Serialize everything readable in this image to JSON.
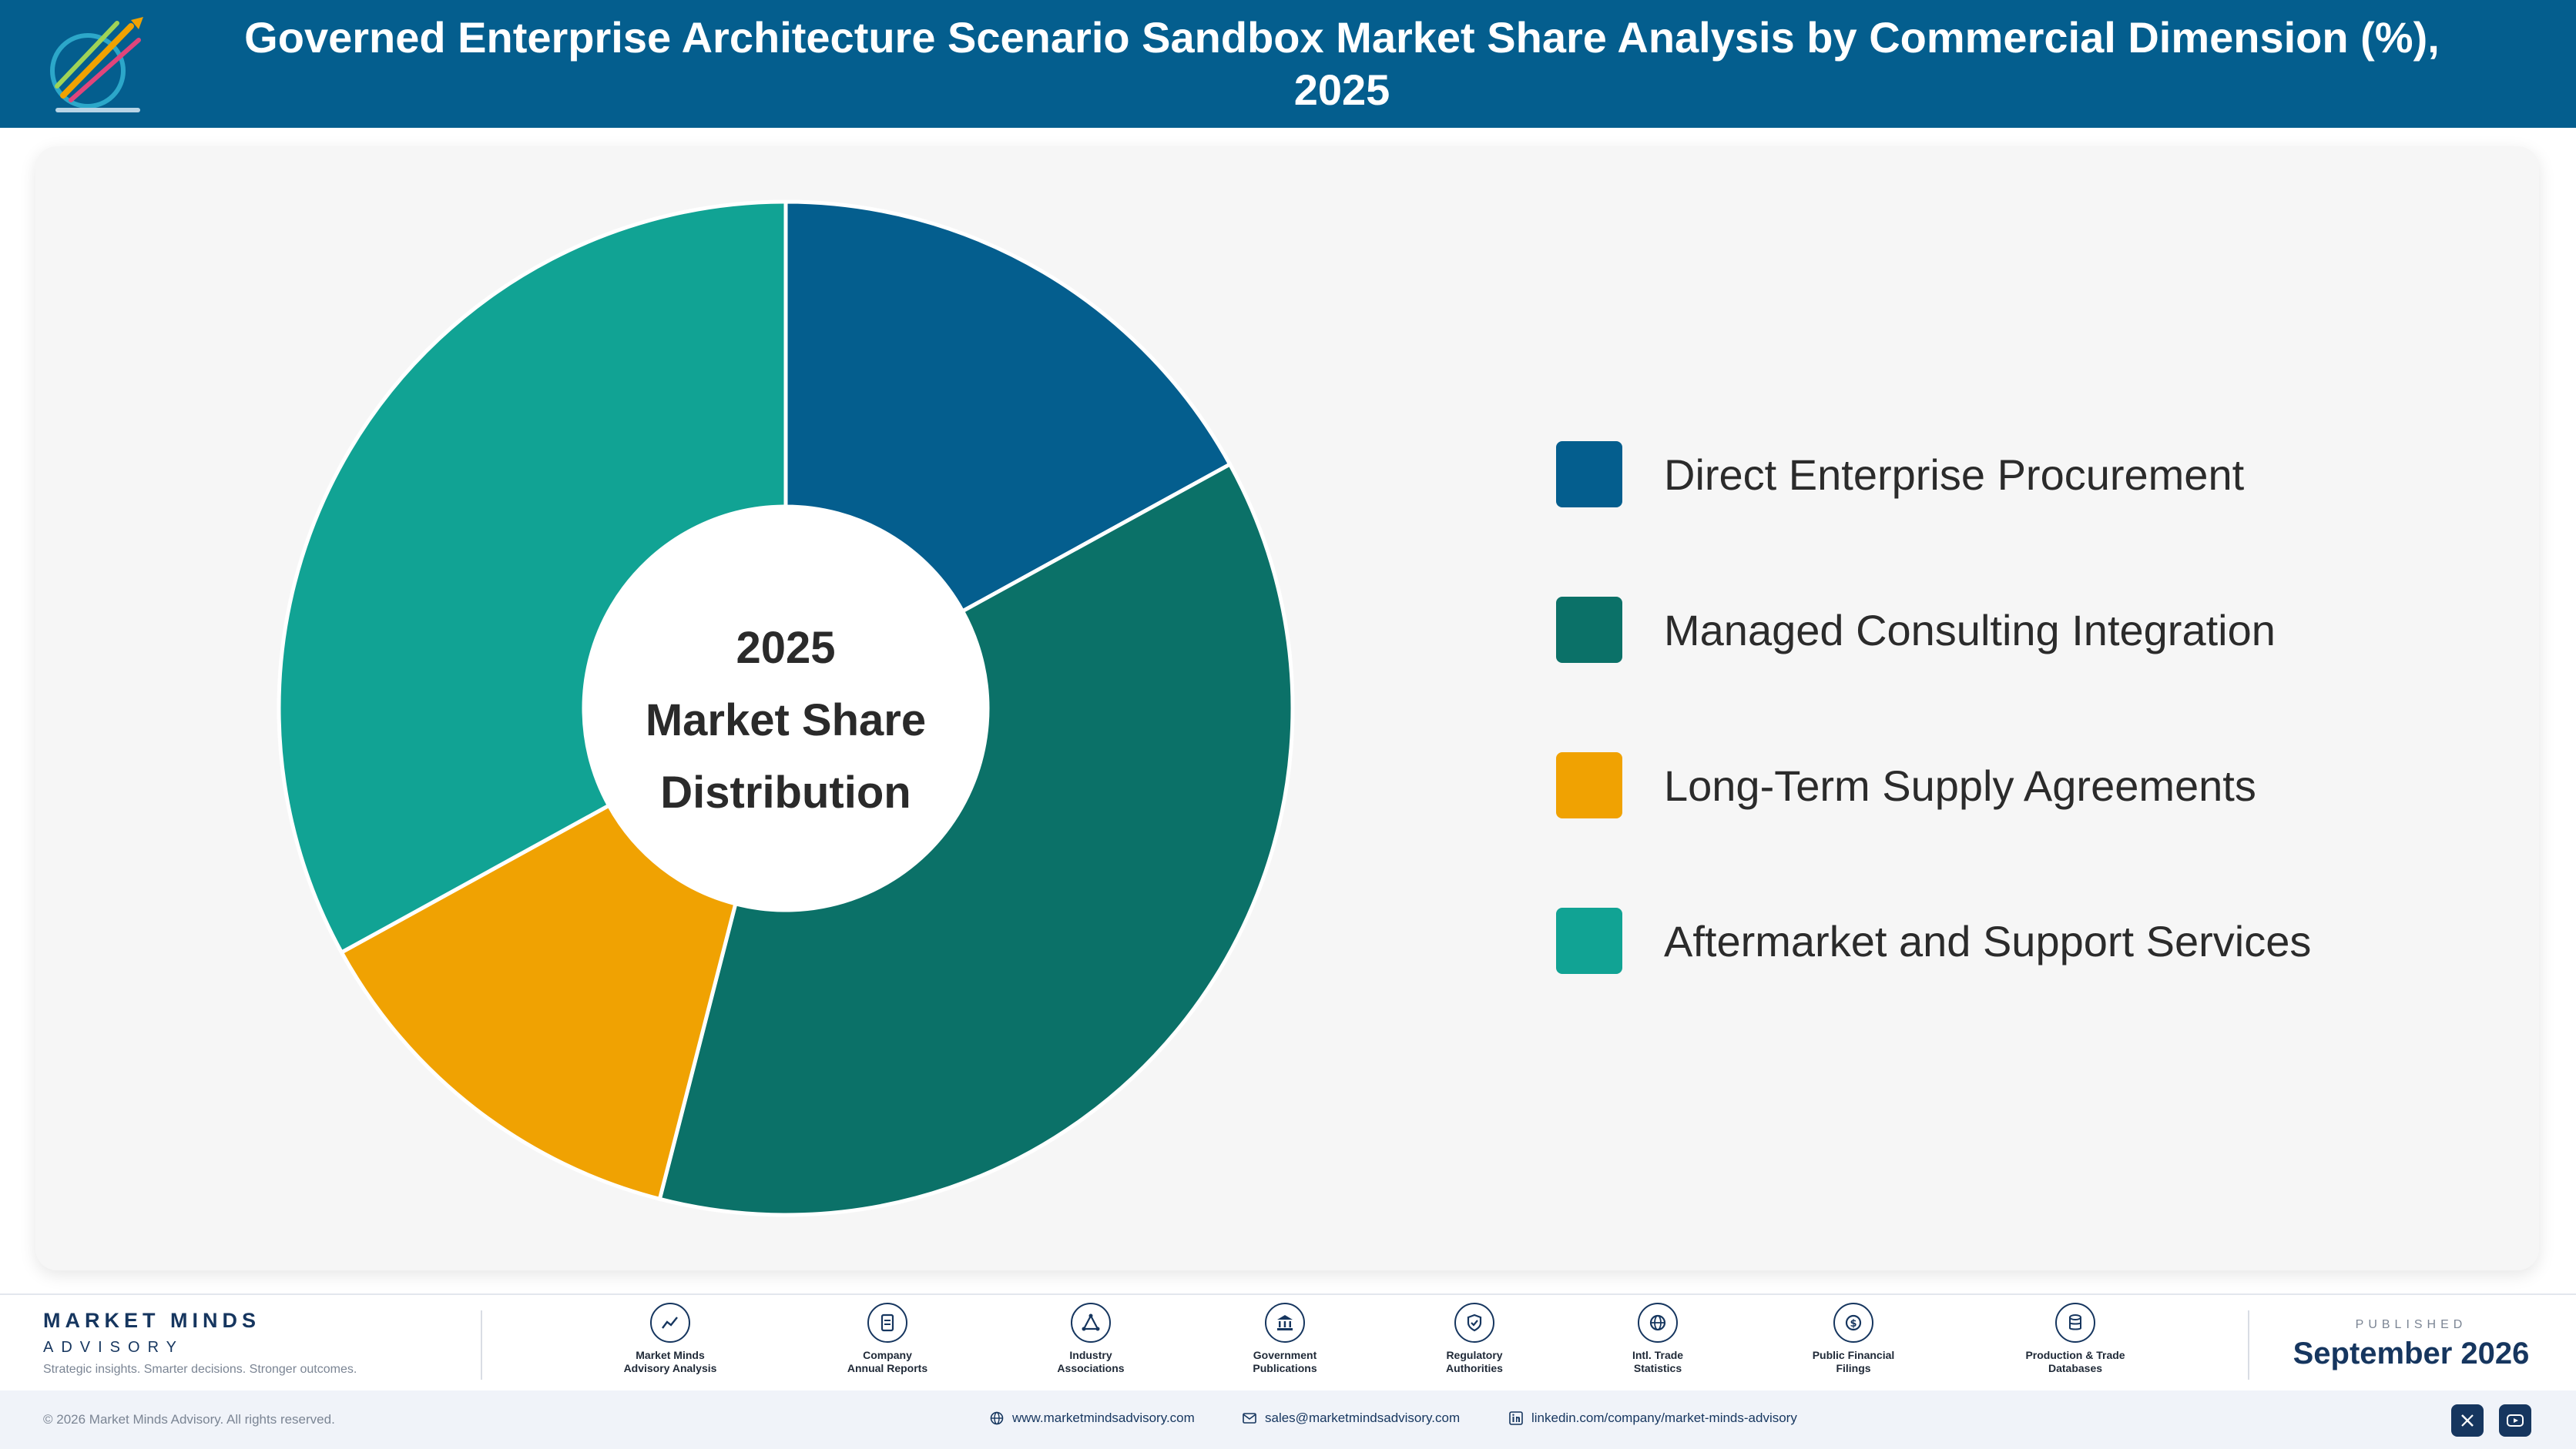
{
  "header": {
    "title": "Governed Enterprise Architecture Scenario Sandbox Market Share Analysis by Commercial Dimension (%), 2025"
  },
  "chart_data": {
    "type": "pie",
    "title": "Governed Enterprise Architecture Scenario Sandbox Market Share Analysis by Commercial Dimension (%), 2025",
    "center_label": [
      "2025",
      "Market Share",
      "Distribution"
    ],
    "categories": [
      "Direct Enterprise Procurement",
      "Managed Consulting Integration",
      "Long-Term Supply Agreements",
      "Aftermarket and Support Services"
    ],
    "values": [
      17,
      37,
      13,
      33
    ],
    "colors": [
      "#045e8e",
      "#0b7168",
      "#f0a202",
      "#11a394"
    ],
    "legend_position": "right"
  },
  "footer": {
    "brand": {
      "name": "MARKET MINDS",
      "sub": "ADVISORY",
      "tagline": "Strategic insights. Smarter decisions. Stronger outcomes."
    },
    "sources": [
      {
        "line1": "Market Minds",
        "line2": "Advisory Analysis",
        "icon": "chart-line-icon"
      },
      {
        "line1": "Company",
        "line2": "Annual Reports",
        "icon": "document-icon"
      },
      {
        "line1": "Industry",
        "line2": "Associations",
        "icon": "network-icon"
      },
      {
        "line1": "Government",
        "line2": "Publications",
        "icon": "government-building-icon"
      },
      {
        "line1": "Regulatory",
        "line2": "Authorities",
        "icon": "shield-check-icon"
      },
      {
        "line1": "Intl. Trade",
        "line2": "Statistics",
        "icon": "globe-icon"
      },
      {
        "line1": "Public Financial",
        "line2": "Filings",
        "icon": "dollar-coin-icon"
      },
      {
        "line1": "Production & Trade",
        "line2": "Databases",
        "icon": "database-icon"
      }
    ],
    "published_label": "PUBLISHED",
    "published_date": "September 2026",
    "copyright": "© 2026 Market Minds Advisory. All rights reserved.",
    "website": "www.marketmindsadvisory.com",
    "email": "sales@marketmindsadvisory.com",
    "linkedin": "linkedin.com/company/market-minds-advisory"
  }
}
